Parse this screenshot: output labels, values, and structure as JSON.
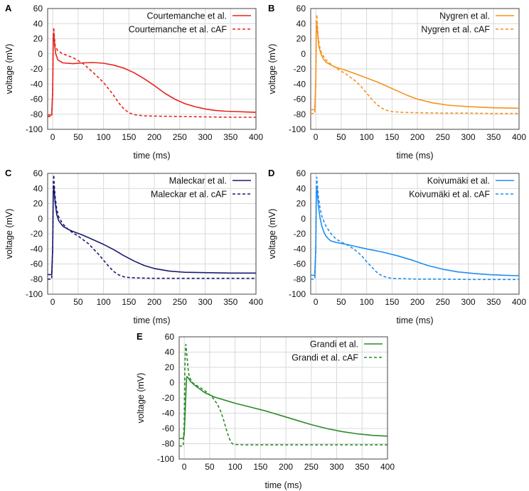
{
  "figure": {
    "panel_count": 5
  },
  "chart_data": [
    {
      "panel": "A",
      "type": "line",
      "xlabel": "time (ms)",
      "ylabel": "voltage (mV)",
      "xlim": [
        -10,
        400
      ],
      "ylim": [
        -100,
        60
      ],
      "xticks": [
        0,
        50,
        100,
        150,
        200,
        250,
        300,
        350,
        400
      ],
      "yticks": [
        60,
        40,
        20,
        0,
        -20,
        -40,
        -60,
        -80,
        -100
      ],
      "legend_position": "top-right",
      "color": "#e8231f",
      "series": [
        {
          "name": "Courtemanche et al.",
          "style": "solid",
          "x": [
            -10,
            -2,
            0,
            1,
            2,
            4,
            6,
            10,
            20,
            40,
            60,
            80,
            100,
            120,
            140,
            160,
            180,
            200,
            220,
            240,
            260,
            280,
            300,
            320,
            340,
            360,
            380,
            400
          ],
          "y": [
            -81,
            -81,
            -50,
            20,
            28,
            10,
            0,
            -8,
            -12,
            -13,
            -12,
            -11.5,
            -12.5,
            -15,
            -19,
            -25,
            -33,
            -42,
            -52,
            -60,
            -66,
            -70,
            -73,
            -75,
            -76,
            -76.5,
            -77,
            -77.5
          ]
        },
        {
          "name": "Courtemanche et al. cAF",
          "style": "dashed",
          "x": [
            -10,
            -2,
            0,
            1,
            2,
            3,
            5,
            10,
            20,
            40,
            60,
            80,
            100,
            120,
            130,
            140,
            150,
            160,
            170,
            180,
            200,
            250,
            300,
            350,
            400
          ],
          "y": [
            -83,
            -83,
            -50,
            25,
            35,
            25,
            10,
            4,
            0,
            -5,
            -13,
            -25,
            -38,
            -55,
            -65,
            -73,
            -78,
            -80.5,
            -81.5,
            -82,
            -82.5,
            -83,
            -83.5,
            -84,
            -84
          ]
        }
      ]
    },
    {
      "panel": "B",
      "type": "line",
      "xlabel": "time (ms)",
      "ylabel": "voltage (mV)",
      "xlim": [
        -10,
        400
      ],
      "ylim": [
        -100,
        60
      ],
      "xticks": [
        0,
        50,
        100,
        150,
        200,
        250,
        300,
        350,
        400
      ],
      "yticks": [
        60,
        40,
        20,
        0,
        -20,
        -40,
        -60,
        -80,
        -100
      ],
      "legend_position": "top-right",
      "color": "#f7921e",
      "series": [
        {
          "name": "Nygren et al.",
          "style": "solid",
          "x": [
            -10,
            -2,
            0,
            1,
            2,
            4,
            6,
            10,
            15,
            20,
            30,
            40,
            60,
            80,
            100,
            120,
            140,
            160,
            180,
            200,
            230,
            260,
            300,
            350,
            400
          ],
          "y": [
            -74,
            -74,
            -40,
            30,
            42,
            25,
            10,
            0,
            -7,
            -11,
            -15,
            -18,
            -22,
            -27,
            -32,
            -37,
            -43,
            -49,
            -55,
            -60,
            -65,
            -68,
            -70,
            -71.5,
            -72
          ]
        },
        {
          "name": "Nygren et al. cAF",
          "style": "dashed",
          "x": [
            -10,
            -2,
            0,
            1,
            2,
            3,
            5,
            8,
            12,
            20,
            30,
            40,
            60,
            80,
            90,
            100,
            110,
            120,
            130,
            140,
            150,
            170,
            200,
            250,
            300,
            350,
            400
          ],
          "y": [
            -79,
            -79,
            -40,
            40,
            52,
            40,
            20,
            8,
            0,
            -8,
            -14,
            -19,
            -27,
            -37,
            -44,
            -52,
            -60,
            -67,
            -72,
            -75,
            -76.5,
            -77.5,
            -78,
            -78.5,
            -78.5,
            -79,
            -79
          ]
        }
      ]
    },
    {
      "panel": "C",
      "type": "line",
      "xlabel": "time (ms)",
      "ylabel": "voltage (mV)",
      "xlim": [
        -10,
        400
      ],
      "ylim": [
        -100,
        60
      ],
      "xticks": [
        0,
        50,
        100,
        150,
        200,
        250,
        300,
        350,
        400
      ],
      "yticks": [
        60,
        40,
        20,
        0,
        -20,
        -40,
        -60,
        -80,
        -100
      ],
      "legend_position": "top-right",
      "color": "#1a1a72",
      "series": [
        {
          "name": "Maleckar et al.",
          "style": "solid",
          "x": [
            -10,
            -2,
            0,
            1,
            2,
            3,
            5,
            8,
            12,
            20,
            30,
            40,
            60,
            80,
            100,
            120,
            140,
            160,
            180,
            200,
            230,
            260,
            300,
            350,
            400
          ],
          "y": [
            -74,
            -74,
            -40,
            30,
            44,
            35,
            20,
            5,
            -3,
            -10,
            -14,
            -17,
            -22,
            -28,
            -34,
            -41,
            -49,
            -56,
            -62,
            -66,
            -69.5,
            -71,
            -71.5,
            -72,
            -72
          ]
        },
        {
          "name": "Maleckar et al. cAF",
          "style": "dashed",
          "x": [
            -10,
            -2,
            0,
            1,
            2,
            3,
            5,
            8,
            12,
            20,
            30,
            40,
            50,
            60,
            70,
            80,
            90,
            100,
            110,
            120,
            130,
            140,
            150,
            170,
            200,
            250,
            300,
            350,
            400
          ],
          "y": [
            -80,
            -80,
            -40,
            45,
            58,
            45,
            28,
            12,
            2,
            -7,
            -14,
            -19,
            -23,
            -28,
            -33,
            -40,
            -47,
            -55,
            -63,
            -70,
            -74.5,
            -77,
            -78,
            -78.5,
            -79,
            -79,
            -79,
            -79,
            -79
          ]
        }
      ]
    },
    {
      "panel": "D",
      "type": "line",
      "xlabel": "time (ms)",
      "ylabel": "voltage (mV)",
      "xlim": [
        -10,
        400
      ],
      "ylim": [
        -100,
        60
      ],
      "xticks": [
        0,
        50,
        100,
        150,
        200,
        250,
        300,
        350,
        400
      ],
      "yticks": [
        60,
        40,
        20,
        0,
        -20,
        -40,
        -60,
        -80,
        -100
      ],
      "legend_position": "top-right",
      "color": "#1f8df0",
      "series": [
        {
          "name": "Koivumäki et al.",
          "style": "solid",
          "x": [
            -10,
            -2,
            0,
            1,
            2,
            3,
            5,
            8,
            12,
            16,
            20,
            25,
            30,
            40,
            60,
            80,
            100,
            130,
            160,
            190,
            220,
            250,
            280,
            310,
            340,
            370,
            400
          ],
          "y": [
            -75,
            -75,
            -40,
            30,
            43,
            35,
            18,
            2,
            -10,
            -18,
            -23,
            -27,
            -29.5,
            -31.5,
            -34,
            -37,
            -40,
            -44,
            -49,
            -55,
            -62,
            -67,
            -70.5,
            -72.5,
            -74,
            -75,
            -75.5
          ]
        },
        {
          "name": "Koivumäki et al. cAF",
          "style": "dashed",
          "x": [
            -10,
            -2,
            0,
            1,
            2,
            3,
            5,
            8,
            12,
            20,
            30,
            40,
            50,
            60,
            70,
            80,
            90,
            100,
            110,
            120,
            130,
            140,
            150,
            170,
            200,
            250,
            300,
            350,
            400
          ],
          "y": [
            -80,
            -80,
            -40,
            42,
            55,
            45,
            30,
            15,
            3,
            -10,
            -20,
            -27,
            -31,
            -34,
            -38,
            -43,
            -49,
            -57,
            -64,
            -71,
            -75.5,
            -78,
            -79,
            -79.5,
            -80,
            -80,
            -80.5,
            -80.5,
            -80.5
          ]
        }
      ]
    },
    {
      "panel": "E",
      "type": "line",
      "xlabel": "time (ms)",
      "ylabel": "voltage (mV)",
      "xlim": [
        -10,
        400
      ],
      "ylim": [
        -100,
        60
      ],
      "xticks": [
        0,
        50,
        100,
        150,
        200,
        250,
        300,
        350,
        400
      ],
      "yticks": [
        60,
        40,
        20,
        0,
        -20,
        -40,
        -60,
        -80,
        -100
      ],
      "legend_position": "top-right",
      "color": "#2a8b2a",
      "series": [
        {
          "name": "Grandi et al.",
          "style": "solid",
          "x": [
            -10,
            -2,
            0,
            2,
            4,
            5,
            7,
            10,
            12,
            15,
            20,
            30,
            40,
            60,
            80,
            100,
            130,
            160,
            190,
            220,
            250,
            280,
            310,
            340,
            370,
            400
          ],
          "y": [
            -73,
            -73,
            -68,
            -35,
            0,
            8,
            7,
            4,
            2,
            0,
            -3,
            -8,
            -13,
            -19,
            -23,
            -27,
            -32,
            -37,
            -43,
            -49,
            -55,
            -60,
            -64,
            -67,
            -69,
            -70
          ]
        },
        {
          "name": "Grandi et al. cAF",
          "style": "dashed",
          "x": [
            -10,
            -2,
            0,
            1,
            2,
            3,
            4,
            6,
            8,
            10,
            14,
            18,
            25,
            35,
            45,
            55,
            65,
            72,
            78,
            83,
            88,
            92,
            96,
            100,
            120,
            150,
            200,
            250,
            300,
            350,
            400
          ],
          "y": [
            -83,
            -83,
            -50,
            10,
            40,
            50,
            45,
            30,
            15,
            8,
            2,
            -1,
            -4,
            -8,
            -13,
            -19,
            -28,
            -38,
            -50,
            -62,
            -72,
            -78,
            -80.5,
            -81,
            -81.5,
            -81.5,
            -81.5,
            -81.5,
            -81.5,
            -81.5,
            -81.5
          ]
        }
      ]
    }
  ]
}
